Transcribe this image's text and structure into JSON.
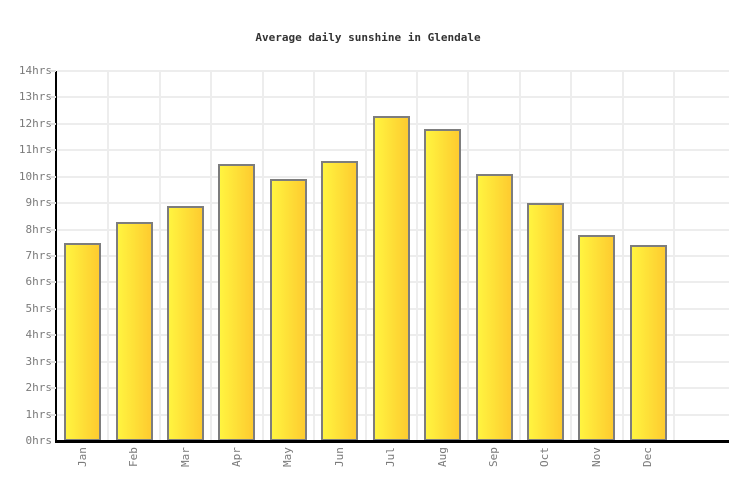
{
  "title": "Average daily sunshine in Glendale",
  "chart_data": {
    "type": "bar",
    "title": "Average daily sunshine in Glendale",
    "categories": [
      "Jan",
      "Feb",
      "Mar",
      "Apr",
      "May",
      "Jun",
      "Jul",
      "Aug",
      "Sep",
      "Oct",
      "Nov",
      "Dec"
    ],
    "values": [
      7.5,
      8.3,
      8.9,
      10.5,
      9.9,
      10.6,
      12.3,
      11.8,
      10.1,
      9.0,
      7.8,
      7.4
    ],
    "unit": "hrs",
    "yticks": [
      "0hrs",
      "1hrs",
      "2hrs",
      "3hrs",
      "4hrs",
      "5hrs",
      "6hrs",
      "7hrs",
      "8hrs",
      "9hrs",
      "10hrs",
      "11hrs",
      "12hrs",
      "13hrs",
      "14hrs"
    ],
    "ylim": [
      0,
      14
    ],
    "xlabel": "",
    "ylabel": "",
    "grid": true,
    "legend": "none",
    "colors": {
      "bar_gradient_left": "#fff440",
      "bar_gradient_right": "#fecb2f",
      "bar_border": "#7d7d7d",
      "gridline": "#ededed",
      "axis": "#000000",
      "tick_label": "#7a7a7a",
      "title": "#333333",
      "background": "#ffffff"
    }
  }
}
